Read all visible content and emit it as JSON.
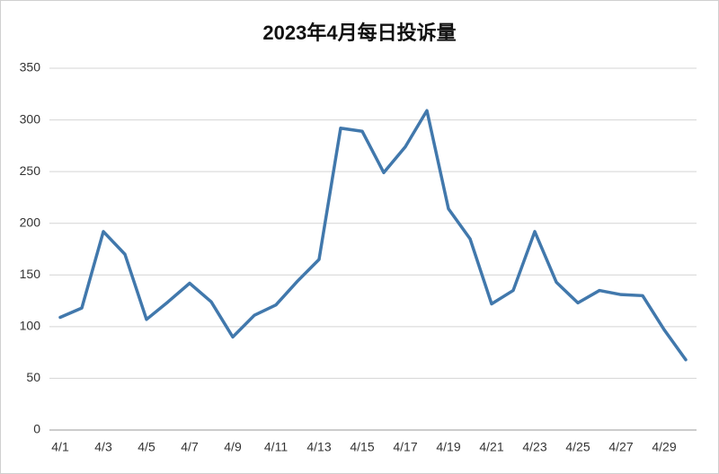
{
  "chart_data": {
    "type": "line",
    "title": "2023年4月每日投诉量",
    "categories": [
      "4/1",
      null,
      "4/3",
      null,
      "4/5",
      null,
      "4/7",
      null,
      "4/9",
      null,
      "4/11",
      null,
      "4/13",
      null,
      "4/15",
      null,
      "4/17",
      null,
      "4/19",
      null,
      "4/21",
      null,
      "4/23",
      null,
      "4/25",
      null,
      "4/27",
      null,
      "4/29",
      null
    ],
    "values": [
      109,
      118,
      192,
      170,
      107,
      124,
      142,
      124,
      90,
      111,
      121,
      144,
      165,
      292,
      289,
      249,
      274,
      309,
      214,
      185,
      122,
      135,
      192,
      143,
      123,
      135,
      131,
      130,
      97,
      68
    ],
    "color": "#4178ac",
    "ylim": [
      0,
      350
    ],
    "yticks": [
      0,
      50,
      100,
      150,
      200,
      250,
      300,
      350
    ],
    "grid": true
  }
}
